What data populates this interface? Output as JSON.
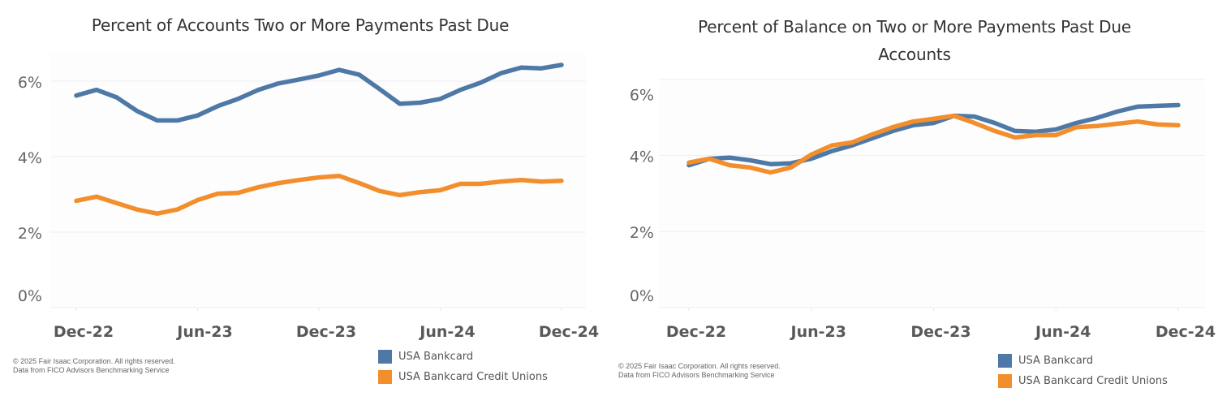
{
  "colors": {
    "usa_bankcard": "#4e79a7",
    "usa_bankcard_credit_unions": "#f28e2b",
    "gridline": "#efeff3"
  },
  "chart_data": [
    {
      "type": "line",
      "title": "Percent of Accounts Two or More Payments Past Due",
      "xlabel": "",
      "ylabel": "",
      "x": [
        "Dec-22",
        "Jan-23",
        "Feb-23",
        "Mar-23",
        "Apr-23",
        "May-23",
        "Jun-23",
        "Jul-23",
        "Aug-23",
        "Sep-23",
        "Oct-23",
        "Nov-23",
        "Dec-23",
        "Jan-24",
        "Feb-24",
        "Mar-24",
        "Apr-24",
        "May-24",
        "Jun-24",
        "Jul-24",
        "Aug-24",
        "Sep-24",
        "Oct-24",
        "Nov-24",
        "Dec-24"
      ],
      "x_tick_labels": [
        "Dec-22",
        "Jun-23",
        "Dec-23",
        "Jun-24",
        "Dec-24"
      ],
      "y_tick_labels": [
        "0%",
        "2%",
        "4%",
        "6%"
      ],
      "y_ticks": [
        0,
        2,
        4,
        6
      ],
      "ylim": [
        0,
        6
      ],
      "grid": true,
      "legend_position": "bottom-right",
      "series": [
        {
          "name": "USA Bankcard",
          "color_key": "usa_bankcard",
          "values": [
            5.62,
            5.77,
            5.57,
            5.21,
            4.96,
            4.96,
            5.09,
            5.34,
            5.53,
            5.77,
            5.94,
            6.04,
            6.15,
            6.3,
            6.17,
            5.79,
            5.4,
            5.43,
            5.53,
            5.77,
            5.96,
            6.21,
            6.36,
            6.34,
            6.43
          ]
        },
        {
          "name": "USA Bankcard Credit Unions",
          "color_key": "usa_bankcard_credit_unions",
          "values": [
            2.83,
            2.94,
            2.77,
            2.6,
            2.49,
            2.6,
            2.85,
            3.02,
            3.04,
            3.19,
            3.3,
            3.38,
            3.45,
            3.49,
            3.3,
            3.09,
            2.98,
            3.06,
            3.11,
            3.28,
            3.28,
            3.34,
            3.38,
            3.34,
            3.36
          ]
        }
      ],
      "footnote": [
        "© 2025 Fair Isaac Corporation. All rights reserved.",
        "Data from FICO Advisors Benchmarking Service"
      ]
    },
    {
      "type": "line",
      "title": "Percent of Balance on Two or More Payments Past Due Accounts",
      "title_lines": [
        "Percent of Balance on Two or More Payments Past Due",
        "Accounts"
      ],
      "xlabel": "",
      "ylabel": "",
      "x": [
        "Dec-22",
        "Jan-23",
        "Feb-23",
        "Mar-23",
        "Apr-23",
        "May-23",
        "Jun-23",
        "Jul-23",
        "Aug-23",
        "Sep-23",
        "Oct-23",
        "Nov-23",
        "Dec-23",
        "Jan-24",
        "Feb-24",
        "Mar-24",
        "Apr-24",
        "May-24",
        "Jun-24",
        "Jul-24",
        "Aug-24",
        "Sep-24",
        "Oct-24",
        "Nov-24",
        "Dec-24"
      ],
      "x_tick_labels": [
        "Dec-22",
        "Jun-23",
        "Dec-23",
        "Jun-24",
        "Dec-24"
      ],
      "y_tick_labels": [
        "0%",
        "2%",
        "4%",
        "6%"
      ],
      "y_ticks": [
        0,
        2,
        4,
        6
      ],
      "ylim": [
        0,
        6
      ],
      "grid": true,
      "legend_position": "bottom-right",
      "series": [
        {
          "name": "USA Bankcard",
          "color_key": "usa_bankcard",
          "values": [
            3.74,
            3.91,
            3.94,
            3.87,
            3.77,
            3.79,
            3.91,
            4.11,
            4.26,
            4.45,
            4.64,
            4.79,
            4.85,
            5.04,
            5.02,
            4.85,
            4.64,
            4.62,
            4.68,
            4.85,
            4.98,
            5.15,
            5.28,
            5.3,
            5.32
          ]
        },
        {
          "name": "USA Bankcard Credit Unions",
          "color_key": "usa_bankcard_credit_unions",
          "values": [
            3.81,
            3.91,
            3.74,
            3.68,
            3.55,
            3.68,
            4.02,
            4.26,
            4.34,
            4.55,
            4.74,
            4.89,
            4.96,
            5.04,
            4.85,
            4.64,
            4.47,
            4.53,
            4.53,
            4.74,
            4.77,
            4.83,
            4.89,
            4.81,
            4.79
          ]
        }
      ],
      "footnote": [
        "© 2025 Fair Isaac Corporation. All rights reserved.",
        "Data from FICO Advisors Benchmarking Service"
      ]
    }
  ]
}
